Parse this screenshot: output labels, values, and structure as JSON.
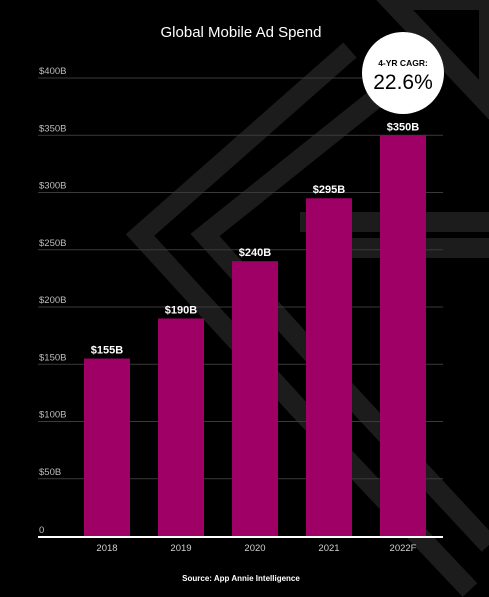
{
  "colors": {
    "background": "#000000",
    "bar": "#9e0066",
    "grid": "#3a3a3a",
    "axis": "#ffffff",
    "decor": "#1c1c1c"
  },
  "badge": {
    "label": "4-YR CAGR:",
    "value": "22.6%"
  },
  "source": "Source: App Annie Intelligence",
  "chart_data": {
    "type": "bar",
    "title": "Global Mobile Ad Spend",
    "xlabel": "",
    "ylabel": "",
    "categories": [
      "2018",
      "2019",
      "2020",
      "2021",
      "2022F"
    ],
    "values": [
      155,
      190,
      240,
      295,
      350
    ],
    "data_labels": [
      "$155B",
      "$190B",
      "$240B",
      "$295B",
      "$350B"
    ],
    "ylim": [
      0,
      400
    ],
    "y_ticks": [
      0,
      50,
      100,
      150,
      200,
      250,
      300,
      350,
      400
    ],
    "y_tick_labels": [
      "0",
      "$50B",
      "$100B",
      "$150B",
      "$200B",
      "$250B",
      "$300B",
      "$350B",
      "$400B"
    ],
    "grid": true,
    "legend": "none"
  }
}
